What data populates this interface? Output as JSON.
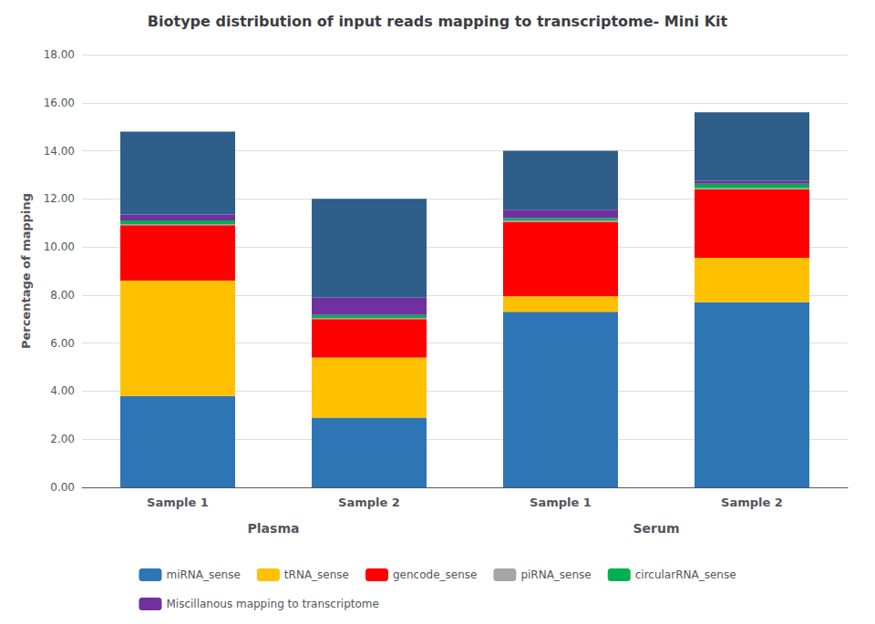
{
  "chart_data": {
    "type": "bar",
    "title": "Biotype distribution of input reads mapping to transcriptome- Mini Kit",
    "ylabel": "Percentage of mapping",
    "categories": [
      "Sample 1",
      "Sample 2",
      "Sample 1",
      "Sample 2"
    ],
    "annotations": [
      "Plasma",
      "Serum"
    ],
    "series": [
      {
        "name": "miRNA_sense",
        "color": "#2E75B6",
        "values": [
          3.8,
          2.9,
          7.3,
          7.7
        ]
      },
      {
        "name": "tRNA_sense",
        "color": "#FFC000",
        "values": [
          4.8,
          2.5,
          0.65,
          1.85
        ]
      },
      {
        "name": "gencode_sense",
        "color": "#FF0000",
        "values": [
          2.3,
          1.6,
          3.1,
          2.85
        ]
      },
      {
        "name": "piRNA_sense",
        "color": "#A6A6A6",
        "values": [
          0.05,
          0.05,
          0.05,
          0.05
        ]
      },
      {
        "name": "circularRNA_sense",
        "color": "#00B050",
        "values": [
          0.15,
          0.12,
          0.1,
          0.18
        ]
      },
      {
        "name": "Miscillanous mapping to transcriptome",
        "color": "#7030A0",
        "values": [
          0.25,
          0.72,
          0.35,
          0.12
        ]
      },
      {
        "color": "#2E5F8A",
        "values": [
          3.45,
          4.11,
          2.45,
          2.85
        ]
      }
    ],
    "stacked": true,
    "ylim": [
      0,
      18.0
    ],
    "yticks": [
      {
        "value": 0,
        "label": "0.00"
      },
      {
        "value": 2,
        "label": "2.00"
      },
      {
        "value": 4,
        "label": "4.00"
      },
      {
        "value": 6,
        "label": "6.00"
      },
      {
        "value": 8,
        "label": "8.00"
      },
      {
        "value": 10,
        "label": "10.00"
      },
      {
        "value": 12,
        "label": "12.00"
      },
      {
        "value": 14,
        "label": "14.00"
      },
      {
        "value": 16,
        "label": "16.00"
      },
      {
        "value": 18,
        "label": "18.00"
      }
    ],
    "grid": true,
    "legend": "bottom"
  }
}
